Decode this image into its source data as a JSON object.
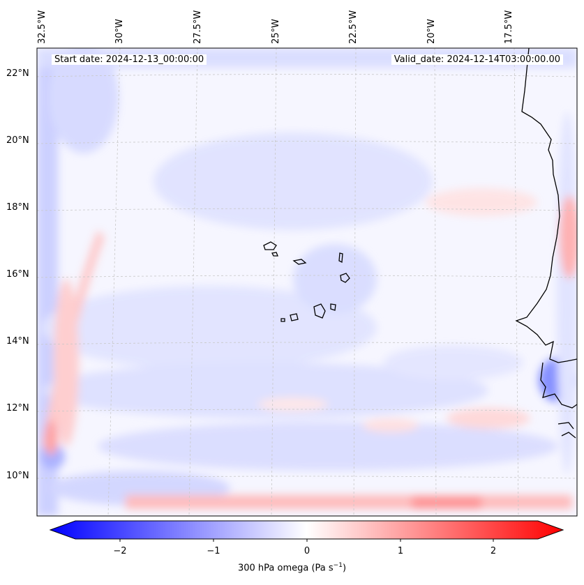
{
  "header": {
    "start_date": "Start date: 2024-12-13_00:00:00",
    "valid_date": "Valid_date: 2024-12-14T03:00:00.00"
  },
  "longitude_labels": [
    "32.5°W",
    "30°W",
    "27.5°W",
    "25°W",
    "22.5°W",
    "20°W",
    "17.5°W"
  ],
  "latitude_labels": [
    "22°N",
    "20°N",
    "18°N",
    "16°N",
    "14°N",
    "12°N",
    "10°N"
  ],
  "colorbar": {
    "ticks": [
      "−2",
      "−1",
      "0",
      "1",
      "2"
    ],
    "label_prefix": "300 hPa omega (Pa s",
    "label_exp": "−1",
    "label_suffix": ")",
    "range": [
      -2.7,
      2.7
    ],
    "colors": {
      "negative": "#0000ff",
      "zero": "#ffffff",
      "positive": "#ff0000"
    }
  },
  "map": {
    "variable": "300 hPa omega",
    "coastline_color": "#000000",
    "gridline_style": "dashed",
    "extent": {
      "lon": [
        -33,
        -15
      ],
      "lat": [
        9,
        23
      ]
    }
  }
}
